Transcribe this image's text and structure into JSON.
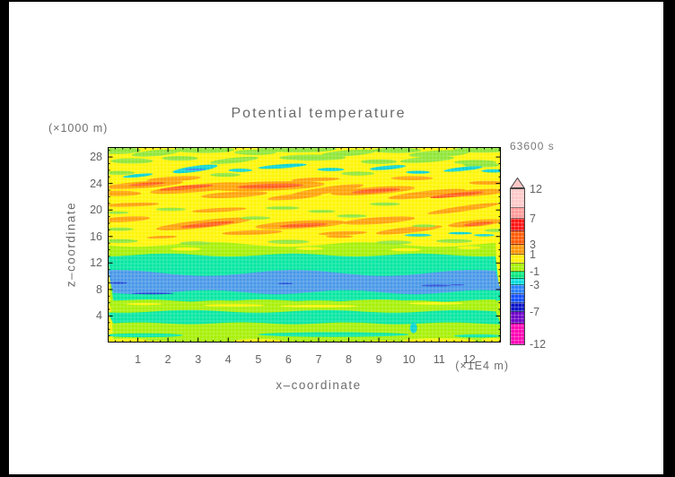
{
  "title": "Potential temperature",
  "time_label": "63600 s",
  "axes": {
    "y_unit_label": "(×1000 m)",
    "y_axis_label": "z–coordinate",
    "x_axis_label": "x–coordinate",
    "x_unit_label": "(×1E4 m)"
  },
  "chart_data": {
    "type": "heatmap",
    "subtype": "filled_contour_cross_section",
    "title": "Potential temperature",
    "time_annotation": "63600 s",
    "xlabel": "x–coordinate",
    "x_unit": "(×1E4 m)",
    "ylabel": "z–coordinate",
    "y_unit": "(×1000 m)",
    "x_range": [
      0,
      13.05
    ],
    "y_range": [
      0,
      29.5
    ],
    "x_ticks": [
      1,
      2,
      3,
      4,
      5,
      6,
      7,
      8,
      9,
      10,
      11,
      12
    ],
    "x_minor_step": 0.25,
    "y_ticks": [
      4,
      8,
      12,
      16,
      20,
      24,
      28
    ],
    "y_minor_step": 1,
    "grid": "fine dotted weave over filled contours",
    "legend_position": "right colorbar with up-arrow overflow tip",
    "colorbar": {
      "tip_color": "#FFC8C8",
      "labels": [
        {
          "text": "12",
          "pos": 0.0
        },
        {
          "text": "7",
          "pos": 0.191
        },
        {
          "text": "3",
          "pos": 0.358
        },
        {
          "text": "1",
          "pos": 0.422
        },
        {
          "text": "-1",
          "pos": 0.532
        },
        {
          "text": "-3",
          "pos": 0.618
        },
        {
          "text": "-7",
          "pos": 0.792
        },
        {
          "text": "-12",
          "pos": 1.0
        }
      ],
      "segments": [
        {
          "color": "#FFC8C8",
          "h": 21
        },
        {
          "color": "#FF9B9B",
          "h": 12
        },
        {
          "color": "#FF1414",
          "h": 14
        },
        {
          "color": "#FF5A00",
          "h": 15
        },
        {
          "color": "#FF9600",
          "h": 11
        },
        {
          "color": "#FFF000",
          "h": 10
        },
        {
          "color": "#A5F000",
          "h": 9
        },
        {
          "color": "#00E67D",
          "h": 8
        },
        {
          "color": "#00DCDC",
          "h": 7
        },
        {
          "color": "#2882FF",
          "h": 10
        },
        {
          "color": "#1450FF",
          "h": 10
        },
        {
          "color": "#0A14C8",
          "h": 10
        },
        {
          "color": "#6E00C8",
          "h": 13
        },
        {
          "color": "#FF00B4",
          "h": 23
        }
      ]
    },
    "palette": {
      "yellow": "#FFF500",
      "chartreuse": "#A5F000",
      "green": "#8CE632",
      "teal": "#00E6A0",
      "cyan": "#00D2D2",
      "blue": "#4696E8",
      "darkblue": "#1E3CD2",
      "bluedash": "#3C78F0",
      "orange": "#FFA000",
      "deeporange": "#FF5A14"
    },
    "field": {
      "base_color": "yellow",
      "bands": [
        {
          "color": "chartreuse",
          "z": [
            0,
            14.8
          ],
          "amp": 0.35,
          "freq": 2.6,
          "phase": 0.4
        },
        {
          "color": "teal",
          "z": [
            6.2,
            13.2
          ],
          "amp": 0.22,
          "freq": 3.1,
          "phase": 1.8
        },
        {
          "color": "blue",
          "z": [
            7.6,
            10.5
          ],
          "amp": 0.45,
          "freq": 2.2,
          "phase": 4.4
        },
        {
          "color": "chartreuse",
          "z": [
            4.7,
            6.3
          ],
          "amp": 0.18,
          "freq": 3.4,
          "phase": 2.6
        },
        {
          "color": "teal",
          "z": [
            2.9,
            4.7
          ],
          "amp": 0.2,
          "freq": 2.9,
          "phase": 0.9
        }
      ],
      "blobs": [
        {
          "c": "green",
          "x": 0.2,
          "z": 29.0,
          "rx": 0.9,
          "rz": 0.55,
          "rot": 0
        },
        {
          "c": "green",
          "x": 1.6,
          "z": 28.6,
          "rx": 0.8,
          "rz": 0.45,
          "rot": -5
        },
        {
          "c": "green",
          "x": 3.2,
          "z": 29.1,
          "rx": 1.0,
          "rz": 0.5,
          "rot": 0
        },
        {
          "c": "green",
          "x": 4.9,
          "z": 28.7,
          "rx": 0.7,
          "rz": 0.4,
          "rot": 0
        },
        {
          "c": "green",
          "x": 6.3,
          "z": 29.2,
          "rx": 1.3,
          "rz": 0.5,
          "rot": 0
        },
        {
          "c": "green",
          "x": 8.0,
          "z": 28.6,
          "rx": 0.9,
          "rz": 0.45,
          "rot": -4
        },
        {
          "c": "green",
          "x": 9.6,
          "z": 29.0,
          "rx": 0.8,
          "rz": 0.4,
          "rot": 0
        },
        {
          "c": "green",
          "x": 11.0,
          "z": 28.5,
          "rx": 1.0,
          "rz": 0.5,
          "rot": -3
        },
        {
          "c": "green",
          "x": 12.4,
          "z": 29.1,
          "rx": 0.9,
          "rz": 0.45,
          "rot": 0
        },
        {
          "c": "green",
          "x": 0.8,
          "z": 27.4,
          "rx": 0.7,
          "rz": 0.4,
          "rot": 0
        },
        {
          "c": "green",
          "x": 2.4,
          "z": 27.8,
          "rx": 0.6,
          "rz": 0.35,
          "rot": 0
        },
        {
          "c": "green",
          "x": 4.2,
          "z": 27.5,
          "rx": 0.8,
          "rz": 0.4,
          "rot": -6
        },
        {
          "c": "green",
          "x": 6.8,
          "z": 27.9,
          "rx": 1.1,
          "rz": 0.45,
          "rot": 0
        },
        {
          "c": "green",
          "x": 9.0,
          "z": 27.3,
          "rx": 0.6,
          "rz": 0.35,
          "rot": 0
        },
        {
          "c": "green",
          "x": 10.6,
          "z": 27.6,
          "rx": 0.9,
          "rz": 0.4,
          "rot": -4
        },
        {
          "c": "green",
          "x": 12.2,
          "z": 27.2,
          "rx": 0.7,
          "rz": 0.35,
          "rot": 0
        },
        {
          "c": "green",
          "x": 0.4,
          "z": 25.6,
          "rx": 0.5,
          "rz": 0.3,
          "rot": 0
        },
        {
          "c": "green",
          "x": 3.9,
          "z": 25.3,
          "rx": 0.5,
          "rz": 0.28,
          "rot": 0
        },
        {
          "c": "green",
          "x": 8.3,
          "z": 25.5,
          "rx": 0.55,
          "rz": 0.3,
          "rot": 0
        },
        {
          "c": "green",
          "x": 12.4,
          "z": 26.8,
          "rx": 0.6,
          "rz": 0.35,
          "rot": 0
        },
        {
          "c": "cyan",
          "x": 1.0,
          "z": 25.2,
          "rx": 0.5,
          "rz": 0.25,
          "rot": -6
        },
        {
          "c": "cyan",
          "x": 2.9,
          "z": 26.2,
          "rx": 0.75,
          "rz": 0.45,
          "rot": -8
        },
        {
          "c": "cyan",
          "x": 4.4,
          "z": 26.0,
          "rx": 0.4,
          "rz": 0.25,
          "rot": 0
        },
        {
          "c": "cyan",
          "x": 5.8,
          "z": 26.6,
          "rx": 0.8,
          "rz": 0.3,
          "rot": -4
        },
        {
          "c": "cyan",
          "x": 7.4,
          "z": 26.1,
          "rx": 0.45,
          "rz": 0.25,
          "rot": 0
        },
        {
          "c": "cyan",
          "x": 9.3,
          "z": 26.4,
          "rx": 0.6,
          "rz": 0.3,
          "rot": -5
        },
        {
          "c": "cyan",
          "x": 10.3,
          "z": 25.7,
          "rx": 0.4,
          "rz": 0.22,
          "rot": 0
        },
        {
          "c": "cyan",
          "x": 11.8,
          "z": 26.2,
          "rx": 0.65,
          "rz": 0.3,
          "rot": -6
        },
        {
          "c": "cyan",
          "x": 12.8,
          "z": 25.9,
          "rx": 0.4,
          "rz": 0.25,
          "rot": 0
        },
        {
          "c": "bluedash",
          "x": 2.9,
          "z": 26.1,
          "rx": 0.35,
          "rz": 0.12,
          "rot": 0
        },
        {
          "c": "orange",
          "x": 1.2,
          "z": 23.8,
          "rx": 1.3,
          "rz": 0.5,
          "rot": -4
        },
        {
          "c": "orange",
          "x": 3.0,
          "z": 23.3,
          "rx": 1.6,
          "rz": 0.6,
          "rot": -5
        },
        {
          "c": "orange",
          "x": 5.3,
          "z": 23.6,
          "rx": 1.9,
          "rz": 0.7,
          "rot": -2
        },
        {
          "c": "orange",
          "x": 7.3,
          "z": 23.0,
          "rx": 1.2,
          "rz": 0.5,
          "rot": -8
        },
        {
          "c": "orange",
          "x": 8.8,
          "z": 22.9,
          "rx": 1.4,
          "rz": 0.55,
          "rot": -4
        },
        {
          "c": "orange",
          "x": 10.6,
          "z": 22.4,
          "rx": 1.3,
          "rz": 0.5,
          "rot": -6
        },
        {
          "c": "orange",
          "x": 12.2,
          "z": 22.6,
          "rx": 1.0,
          "rz": 0.5,
          "rot": -4
        },
        {
          "c": "orange",
          "x": 2.2,
          "z": 24.7,
          "rx": 0.9,
          "rz": 0.35,
          "rot": -3
        },
        {
          "c": "orange",
          "x": 6.9,
          "z": 24.6,
          "rx": 0.8,
          "rz": 0.3,
          "rot": -2
        },
        {
          "c": "orange",
          "x": 10.1,
          "z": 24.8,
          "rx": 0.7,
          "rz": 0.3,
          "rot": 0
        },
        {
          "c": "orange",
          "x": 12.6,
          "z": 24.1,
          "rx": 0.6,
          "rz": 0.3,
          "rot": 0
        },
        {
          "c": "orange",
          "x": 0.3,
          "z": 22.5,
          "rx": 0.8,
          "rz": 0.4,
          "rot": 0
        },
        {
          "c": "orange",
          "x": 4.2,
          "z": 22.3,
          "rx": 1.1,
          "rz": 0.45,
          "rot": -3
        },
        {
          "c": "orange",
          "x": 6.2,
          "z": 22.0,
          "rx": 0.9,
          "rz": 0.4,
          "rot": -5
        },
        {
          "c": "deeporange",
          "x": 2.6,
          "z": 23.4,
          "rx": 0.9,
          "rz": 0.3,
          "rot": -5
        },
        {
          "c": "deeporange",
          "x": 5.4,
          "z": 23.6,
          "rx": 1.1,
          "rz": 0.35,
          "rot": -2
        },
        {
          "c": "deeporange",
          "x": 8.9,
          "z": 22.9,
          "rx": 0.8,
          "rz": 0.3,
          "rot": -4
        },
        {
          "c": "deeporange",
          "x": 11.6,
          "z": 22.3,
          "rx": 0.9,
          "rz": 0.3,
          "rot": -6
        },
        {
          "c": "deeporange",
          "x": 1.3,
          "z": 23.9,
          "rx": 0.6,
          "rz": 0.22,
          "rot": -4
        },
        {
          "c": "orange",
          "x": 0.8,
          "z": 20.8,
          "rx": 0.9,
          "rz": 0.3,
          "rot": -2
        },
        {
          "c": "orange",
          "x": 3.7,
          "z": 20.0,
          "rx": 0.9,
          "rz": 0.3,
          "rot": -3
        },
        {
          "c": "orange",
          "x": 11.8,
          "z": 20.2,
          "rx": 1.2,
          "rz": 0.4,
          "rot": -8
        },
        {
          "c": "green",
          "x": 2.1,
          "z": 20.1,
          "rx": 0.5,
          "rz": 0.25,
          "rot": 0
        },
        {
          "c": "green",
          "x": 5.8,
          "z": 20.3,
          "rx": 0.55,
          "rz": 0.25,
          "rot": 0
        },
        {
          "c": "green",
          "x": 7.1,
          "z": 19.8,
          "rx": 0.45,
          "rz": 0.22,
          "rot": 0
        },
        {
          "c": "green",
          "x": 9.2,
          "z": 20.9,
          "rx": 0.5,
          "rz": 0.25,
          "rot": 0
        },
        {
          "c": "green",
          "x": 0.3,
          "z": 19.6,
          "rx": 0.4,
          "rz": 0.2,
          "rot": 0
        },
        {
          "c": "orange",
          "x": 0.6,
          "z": 18.6,
          "rx": 0.8,
          "rz": 0.4,
          "rot": -3
        },
        {
          "c": "orange",
          "x": 3.2,
          "z": 17.9,
          "rx": 1.6,
          "rz": 0.6,
          "rot": -6
        },
        {
          "c": "orange",
          "x": 6.4,
          "z": 17.8,
          "rx": 1.5,
          "rz": 0.6,
          "rot": -3
        },
        {
          "c": "orange",
          "x": 9.0,
          "z": 18.4,
          "rx": 1.2,
          "rz": 0.5,
          "rot": -4
        },
        {
          "c": "orange",
          "x": 10.0,
          "z": 17.0,
          "rx": 1.1,
          "rz": 0.45,
          "rot": -6
        },
        {
          "c": "orange",
          "x": 12.2,
          "z": 18.0,
          "rx": 0.9,
          "rz": 0.5,
          "rot": -5
        },
        {
          "c": "orange",
          "x": 4.8,
          "z": 16.6,
          "rx": 1.0,
          "rz": 0.35,
          "rot": -2
        },
        {
          "c": "orange",
          "x": 7.8,
          "z": 16.5,
          "rx": 0.8,
          "rz": 0.3,
          "rot": -2
        },
        {
          "c": "deeporange",
          "x": 3.3,
          "z": 17.8,
          "rx": 0.9,
          "rz": 0.3,
          "rot": -6
        },
        {
          "c": "deeporange",
          "x": 6.5,
          "z": 17.7,
          "rx": 0.8,
          "rz": 0.28,
          "rot": -3
        },
        {
          "c": "deeporange",
          "x": 12.3,
          "z": 17.9,
          "rx": 0.5,
          "rz": 0.25,
          "rot": -5
        },
        {
          "c": "green",
          "x": 0.4,
          "z": 17.1,
          "rx": 0.45,
          "rz": 0.25,
          "rot": 0
        },
        {
          "c": "green",
          "x": 4.9,
          "z": 18.8,
          "rx": 0.5,
          "rz": 0.25,
          "rot": 0
        },
        {
          "c": "green",
          "x": 8.1,
          "z": 19.1,
          "rx": 0.5,
          "rz": 0.25,
          "rot": 0
        },
        {
          "c": "green",
          "x": 10.5,
          "z": 17.6,
          "rx": 0.4,
          "rz": 0.2,
          "rot": 0
        },
        {
          "c": "green",
          "x": 12.9,
          "z": 16.9,
          "rx": 0.4,
          "rz": 0.25,
          "rot": 0
        },
        {
          "c": "cyan",
          "x": 10.3,
          "z": 16.2,
          "rx": 0.45,
          "rz": 0.2,
          "rot": 0
        },
        {
          "c": "cyan",
          "x": 11.7,
          "z": 16.5,
          "rx": 0.4,
          "rz": 0.18,
          "rot": 0
        },
        {
          "c": "cyan",
          "x": 12.5,
          "z": 16.2,
          "rx": 0.35,
          "rz": 0.18,
          "rot": 0
        },
        {
          "c": "green",
          "x": 0.4,
          "z": 15.3,
          "rx": 0.6,
          "rz": 0.3,
          "rot": 0
        },
        {
          "c": "green",
          "x": 2.9,
          "z": 15.0,
          "rx": 0.5,
          "rz": 0.28,
          "rot": 0
        },
        {
          "c": "green",
          "x": 6.0,
          "z": 15.2,
          "rx": 0.7,
          "rz": 0.3,
          "rot": 0
        },
        {
          "c": "green",
          "x": 9.5,
          "z": 15.1,
          "rx": 0.6,
          "rz": 0.28,
          "rot": 0
        },
        {
          "c": "green",
          "x": 11.5,
          "z": 15.3,
          "rx": 0.6,
          "rz": 0.3,
          "rot": 0
        },
        {
          "c": "orange",
          "x": 1.8,
          "z": 15.9,
          "rx": 0.5,
          "rz": 0.2,
          "rot": -2
        },
        {
          "c": "orange",
          "x": 7.7,
          "z": 16.0,
          "rx": 0.45,
          "rz": 0.2,
          "rot": 0
        },
        {
          "c": "yellow",
          "x": 2.6,
          "z": 14.1,
          "rx": 0.5,
          "rz": 0.25,
          "rot": 0
        },
        {
          "c": "yellow",
          "x": 6.7,
          "z": 14.2,
          "rx": 0.45,
          "rz": 0.22,
          "rot": 0
        },
        {
          "c": "yellow",
          "x": 9.9,
          "z": 14.0,
          "rx": 0.5,
          "rz": 0.25,
          "rot": 0
        },
        {
          "c": "yellow",
          "x": 12.0,
          "z": 14.3,
          "rx": 0.4,
          "rz": 0.2,
          "rot": 0
        },
        {
          "c": "darkblue",
          "x": 0.35,
          "z": 9.0,
          "rx": 0.3,
          "rz": 0.12,
          "rot": 0
        },
        {
          "c": "darkblue",
          "x": 10.9,
          "z": 8.6,
          "rx": 0.5,
          "rz": 0.14,
          "rot": 0
        },
        {
          "c": "darkblue",
          "x": 11.6,
          "z": 8.7,
          "rx": 0.25,
          "rz": 0.1,
          "rot": 0
        },
        {
          "c": "darkblue",
          "x": 1.5,
          "z": 7.4,
          "rx": 0.7,
          "rz": 0.12,
          "rot": 0
        },
        {
          "c": "darkblue",
          "x": 5.9,
          "z": 8.9,
          "rx": 0.25,
          "rz": 0.1,
          "rot": 0
        },
        {
          "c": "yellow",
          "x": 4.2,
          "z": 5.6,
          "rx": 1.0,
          "rz": 0.18,
          "rot": 0
        },
        {
          "c": "yellow",
          "x": 7.0,
          "z": 5.5,
          "rx": 1.3,
          "rz": 0.18,
          "rot": 0
        },
        {
          "c": "yellow",
          "x": 10.9,
          "z": 5.9,
          "rx": 0.9,
          "rz": 0.18,
          "rot": 0
        },
        {
          "c": "yellow",
          "x": 1.2,
          "z": 5.8,
          "rx": 0.6,
          "rz": 0.15,
          "rot": 0
        },
        {
          "c": "cyan",
          "x": 10.15,
          "z": 2.2,
          "rx": 0.12,
          "rz": 0.8,
          "rot": 0
        },
        {
          "c": "teal",
          "x": 1.2,
          "z": 1.1,
          "rx": 1.3,
          "rz": 0.3,
          "rot": 0
        },
        {
          "c": "teal",
          "x": 7.5,
          "z": 1.2,
          "rx": 2.5,
          "rz": 0.35,
          "rot": 0
        },
        {
          "c": "teal",
          "x": 12.3,
          "z": 1.0,
          "rx": 0.8,
          "rz": 0.25,
          "rot": 0
        },
        {
          "c": "yellow",
          "x": 0.7,
          "z": 0.3,
          "rx": 0.6,
          "rz": 0.3,
          "rot": 0
        },
        {
          "c": "yellow",
          "x": 5.0,
          "z": 0.25,
          "rx": 0.8,
          "rz": 0.3,
          "rot": 0
        },
        {
          "c": "yellow",
          "x": 11.0,
          "z": 0.3,
          "rx": 1.2,
          "rz": 0.35,
          "rot": 0
        },
        {
          "c": "yellow",
          "x": 12.8,
          "z": 0.4,
          "rx": 0.4,
          "rz": 0.25,
          "rot": 0
        }
      ]
    }
  }
}
